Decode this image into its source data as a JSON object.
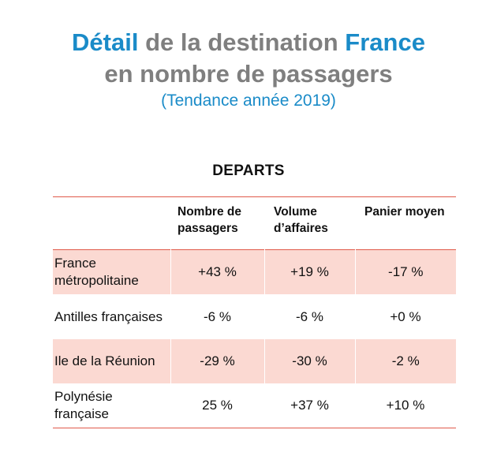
{
  "title": {
    "line1_accent1": "Détail",
    "line1_middle": " de la destination ",
    "line1_accent2": "France",
    "line2": "en nombre de passagers",
    "subtitle": "(Tendance année 2019)"
  },
  "section": {
    "heading": "DEPARTS"
  },
  "colors": {
    "accent_blue": "#1a8bc8",
    "title_gray": "#7f7f7f",
    "row_shade": "#fbd9d2",
    "rule_red": "#e05a4a"
  },
  "table": {
    "headers": [
      "",
      "Nombre de passagers",
      "Volume d’affaires",
      "Panier moyen"
    ],
    "rows": [
      {
        "label": "France métropolitaine",
        "values": [
          "+43 %",
          "+19 %",
          "-17 %"
        ]
      },
      {
        "label": "Antilles françaises",
        "values": [
          "-6 %",
          "-6 %",
          "+0 %"
        ]
      },
      {
        "label": "Ile de la Réunion",
        "values": [
          "-29 %",
          "-30 %",
          "-2 %"
        ]
      },
      {
        "label": "Polynésie française",
        "values": [
          "25 %",
          "+37 %",
          "+10 %"
        ]
      }
    ]
  }
}
